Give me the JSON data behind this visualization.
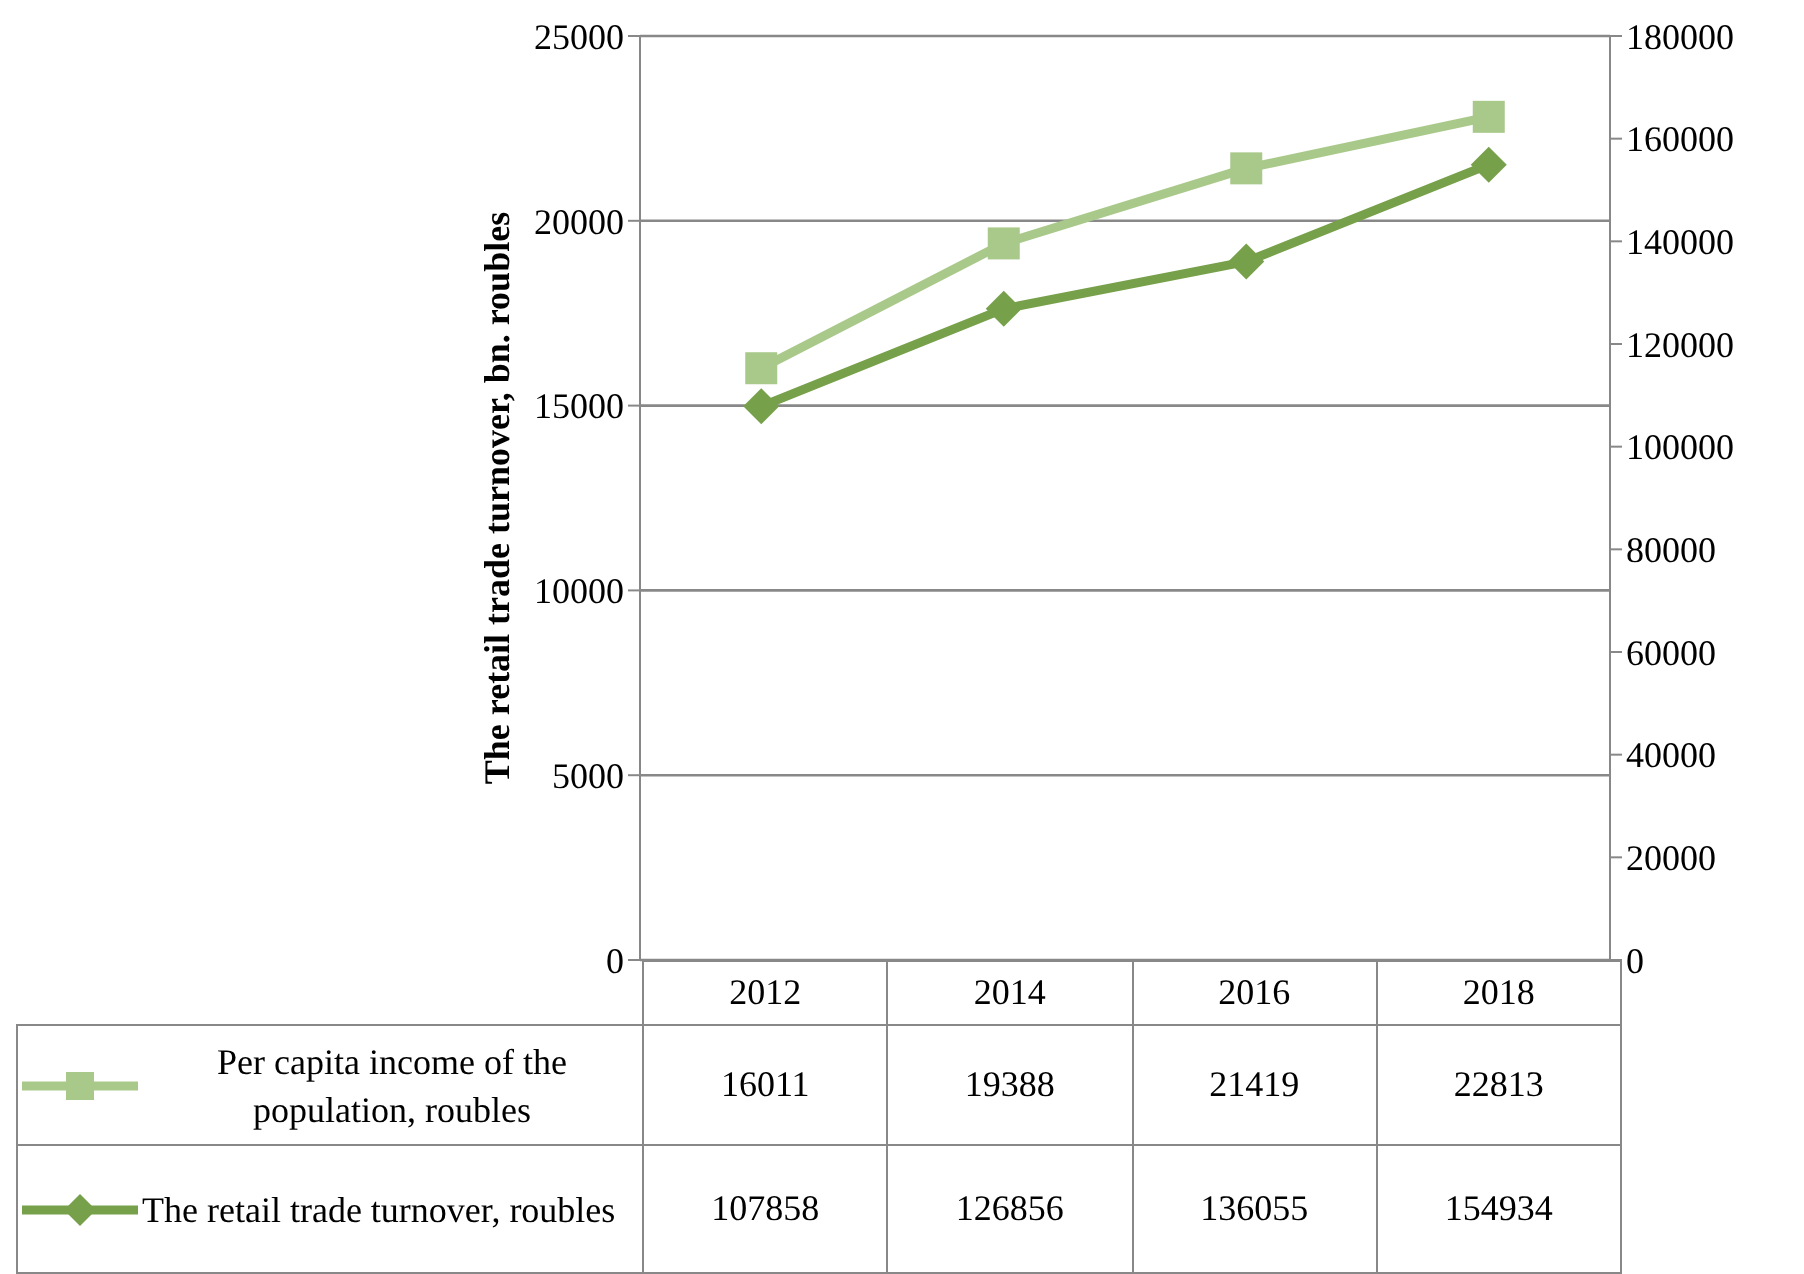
{
  "chart_data": {
    "type": "line",
    "ylabel": "The retail trade turnover, bn. roubles",
    "categories": [
      "2012",
      "2014",
      "2016",
      "2018"
    ],
    "series": [
      {
        "name": "Per capita income of the population, roubles",
        "color": "#a9c98a",
        "marker": "square",
        "values": [
          16011,
          19388,
          21419,
          22813
        ]
      },
      {
        "name": "The retail trade turnover, roubles",
        "color": "#77a04a",
        "marker": "diamond",
        "axis": "y2",
        "values": [
          107858,
          126856,
          136055,
          154934
        ]
      }
    ],
    "ylim": [
      0,
      25000
    ],
    "yticks": [
      0,
      5000,
      10000,
      15000,
      20000,
      25000
    ],
    "y2lim": [
      0,
      180000
    ],
    "y2ticks": [
      0,
      20000,
      40000,
      60000,
      80000,
      100000,
      120000,
      140000,
      160000,
      180000
    ],
    "grid": "y",
    "legend": "bottom",
    "data_labels": true
  }
}
